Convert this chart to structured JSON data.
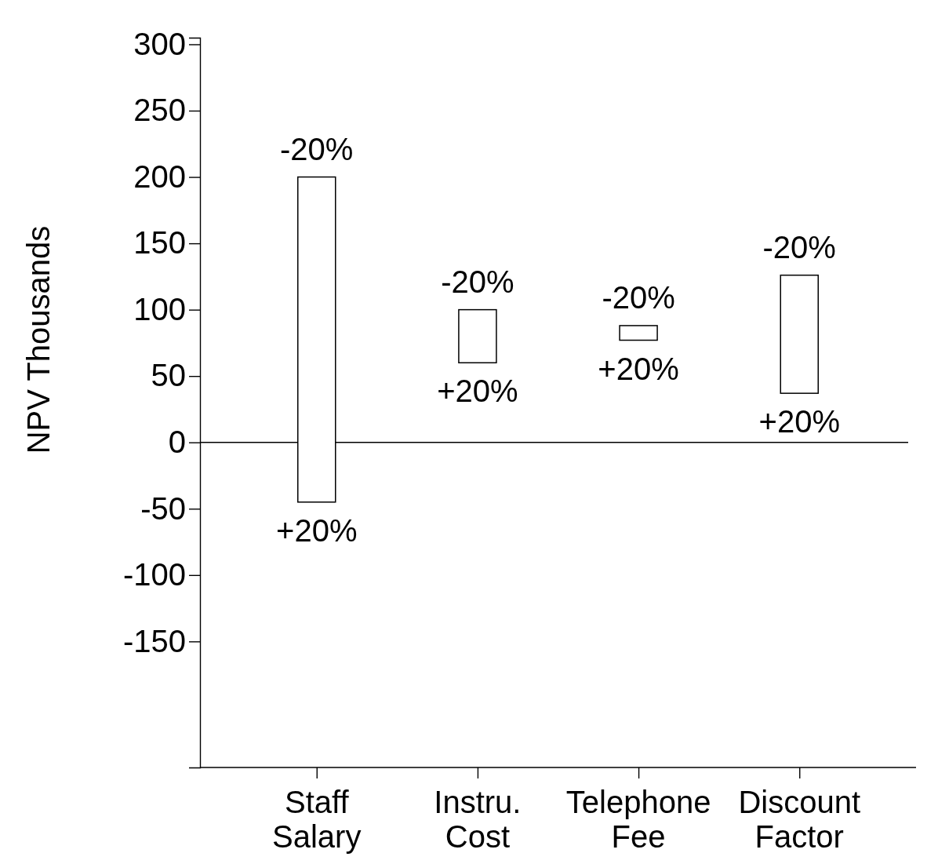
{
  "chart_data": {
    "type": "bar",
    "ylabel": "NPV Thousands",
    "categories": [
      "Staff Salary",
      "Instru. Cost",
      "Telephone Fee",
      "Discount Factor"
    ],
    "base": [
      -45,
      60,
      77,
      37
    ],
    "values": [
      245,
      40,
      11,
      89
    ],
    "color": "#ffffff",
    "ylim": [
      -245,
      305
    ],
    "yticks": [
      300,
      250,
      200,
      150,
      100,
      50,
      0,
      -50,
      -100,
      -150
    ],
    "ref_lines": [
      {
        "axis": "y",
        "value": 0
      }
    ],
    "annotations": [
      {
        "text": "-20%",
        "x": "Staff Salary",
        "y": 200
      },
      {
        "text": "+20%",
        "x": "Staff Salary",
        "y": -45
      },
      {
        "text": "-20%",
        "x": "Instru. Cost",
        "y": 100
      },
      {
        "text": "+20%",
        "x": "Instru. Cost",
        "y": 60
      },
      {
        "text": "-20%",
        "x": "Telephone Fee",
        "y": 88
      },
      {
        "text": "+20%",
        "x": "Telephone Fee",
        "y": 77
      },
      {
        "text": "-20%",
        "x": "Discount Factor",
        "y": 126
      },
      {
        "text": "+20%",
        "x": "Discount Factor",
        "y": 37
      }
    ],
    "grid": false
  }
}
